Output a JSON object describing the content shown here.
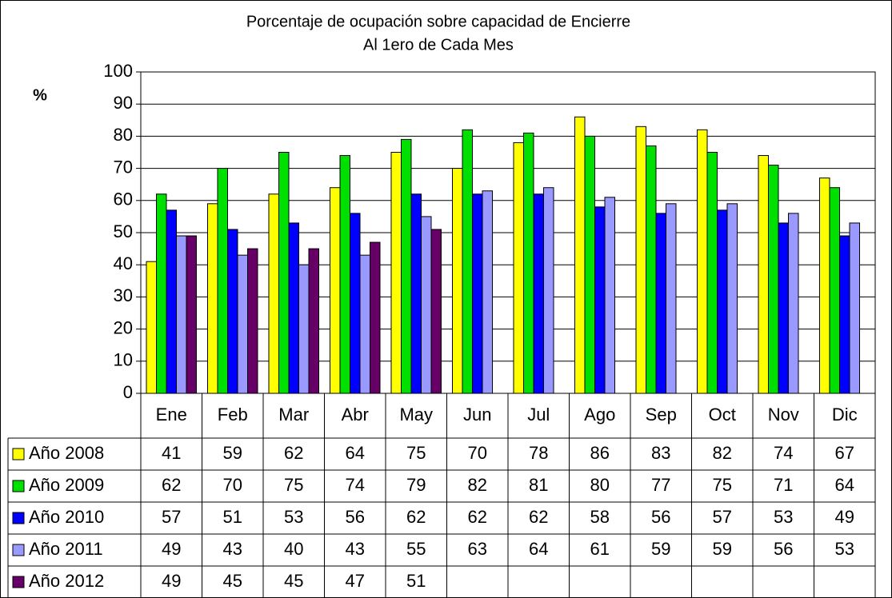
{
  "chart_data": {
    "type": "bar",
    "title": "Porcentaje de ocupación sobre capacidad de Encierre",
    "subtitle": "Al 1ero de Cada Mes",
    "y_label": "%",
    "categories": [
      "Ene",
      "Feb",
      "Mar",
      "Abr",
      "May",
      "Jun",
      "Jul",
      "Ago",
      "Sep",
      "Oct",
      "Nov",
      "Dic"
    ],
    "series": [
      {
        "name": "Año 2008",
        "color": "#ffff00",
        "values": [
          41,
          59,
          62,
          64,
          75,
          70,
          78,
          86,
          83,
          82,
          74,
          67
        ]
      },
      {
        "name": "Año 2009",
        "color": "#00e000",
        "values": [
          62,
          70,
          75,
          74,
          79,
          82,
          81,
          80,
          77,
          75,
          71,
          64
        ]
      },
      {
        "name": "Año 2010",
        "color": "#0000ff",
        "values": [
          57,
          51,
          53,
          56,
          62,
          62,
          62,
          58,
          56,
          57,
          53,
          49
        ]
      },
      {
        "name": "Año 2011",
        "color": "#9999ff",
        "values": [
          49,
          43,
          40,
          43,
          55,
          63,
          64,
          61,
          59,
          59,
          56,
          53
        ]
      },
      {
        "name": "Año 2012",
        "color": "#660066",
        "values": [
          49,
          45,
          45,
          47,
          51,
          null,
          null,
          null,
          null,
          null,
          null,
          null
        ]
      }
    ],
    "ylim": [
      0,
      100
    ],
    "yticks": [
      0,
      10,
      20,
      30,
      40,
      50,
      60,
      70,
      80,
      90,
      100
    ],
    "grid": true,
    "data_table": true
  }
}
